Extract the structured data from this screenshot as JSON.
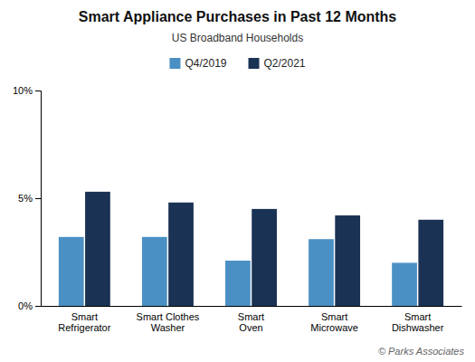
{
  "chart_data": {
    "type": "bar",
    "title": "Smart Appliance Purchases in Past 12 Months",
    "subtitle": "US Broadband Households",
    "categories": [
      "Smart\nRefrigerator",
      "Smart Clothes\nWasher",
      "Smart\nOven",
      "Smart\nMicrowave",
      "Smart\nDishwasher"
    ],
    "series": [
      {
        "name": "Q4/2019",
        "color": "#4a90c4",
        "values": [
          3.2,
          3.2,
          2.1,
          3.1,
          2.0
        ]
      },
      {
        "name": "Q2/2021",
        "color": "#1a3254",
        "values": [
          5.3,
          4.8,
          4.5,
          4.2,
          4.0
        ]
      }
    ],
    "ylim": [
      0,
      10
    ],
    "yticks": [
      {
        "value": 0,
        "label": "0%"
      },
      {
        "value": 5,
        "label": "5%"
      },
      {
        "value": 10,
        "label": "10%"
      }
    ],
    "grid": false,
    "legend": "top",
    "annotations": [
      "© Parks Associates"
    ]
  }
}
